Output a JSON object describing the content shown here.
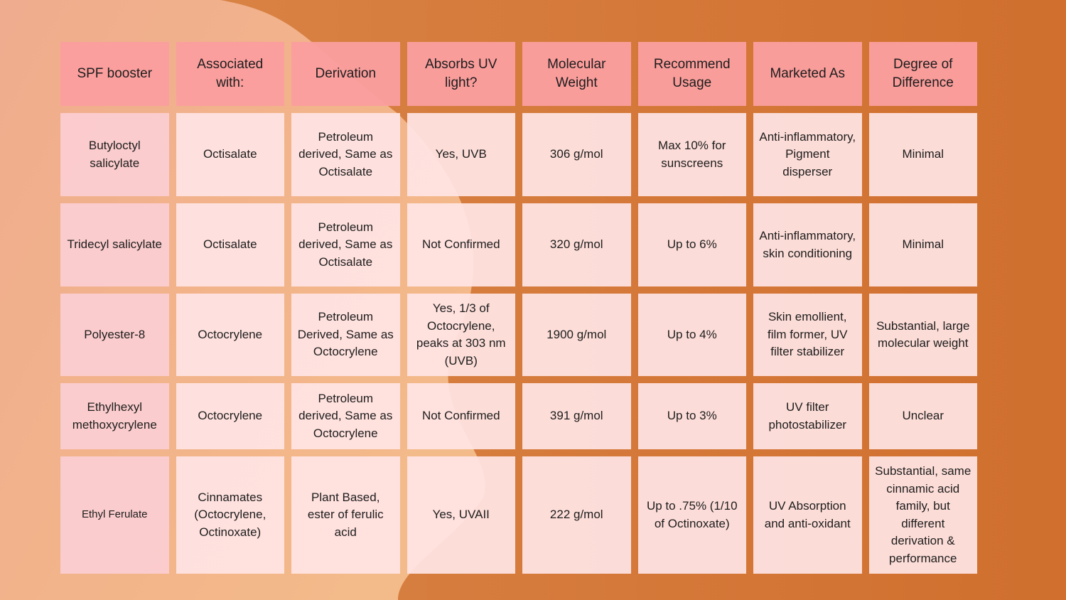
{
  "table": {
    "headers": [
      "SPF booster",
      "Associated with:",
      "Derivation",
      "Absorbs UV light?",
      "Molecular Weight",
      "Recommend Usage",
      "Marketed As",
      "Degree of Difference"
    ],
    "rows": [
      [
        "Butyloctyl salicylate",
        "Octisalate",
        "Petroleum derived, Same as Octisalate",
        "Yes, UVB",
        "306 g/mol",
        "Max 10% for sunscreens",
        "Anti-inflammatory, Pigment disperser",
        "Minimal"
      ],
      [
        "Tridecyl salicylate",
        "Octisalate",
        "Petroleum derived, Same as Octisalate",
        "Not Confirmed",
        "320 g/mol",
        "Up to 6%",
        "Anti-inflammatory, skin conditioning",
        "Minimal"
      ],
      [
        "Polyester-8",
        "Octocrylene",
        "Petroleum Derived, Same as Octocrylene",
        "Yes, 1/3 of Octocrylene, peaks at 303 nm (UVB)",
        "1900 g/mol",
        "Up to 4%",
        "Skin emollient, film former, UV filter stabilizer",
        "Substantial, large molecular weight"
      ],
      [
        "Ethylhexyl methoxycrylene",
        "Octocrylene",
        "Petroleum derived, Same as Octocrylene",
        "Not Confirmed",
        "391 g/mol",
        "Up to 3%",
        "UV filter photostabilizer",
        "Unclear"
      ],
      [
        "Ethyl Ferulate",
        "Cinnamates (Octocrylene, Octinoxate)",
        "Plant Based, ester of ferulic acid",
        "Yes, UVAII",
        "222 g/mol",
        "Up to .75% (1/10 of Octinoxate)",
        "UV Absorption and anti-oxidant",
        "Substantial, same cinnamic acid family, but different derivation & performance"
      ]
    ]
  }
}
